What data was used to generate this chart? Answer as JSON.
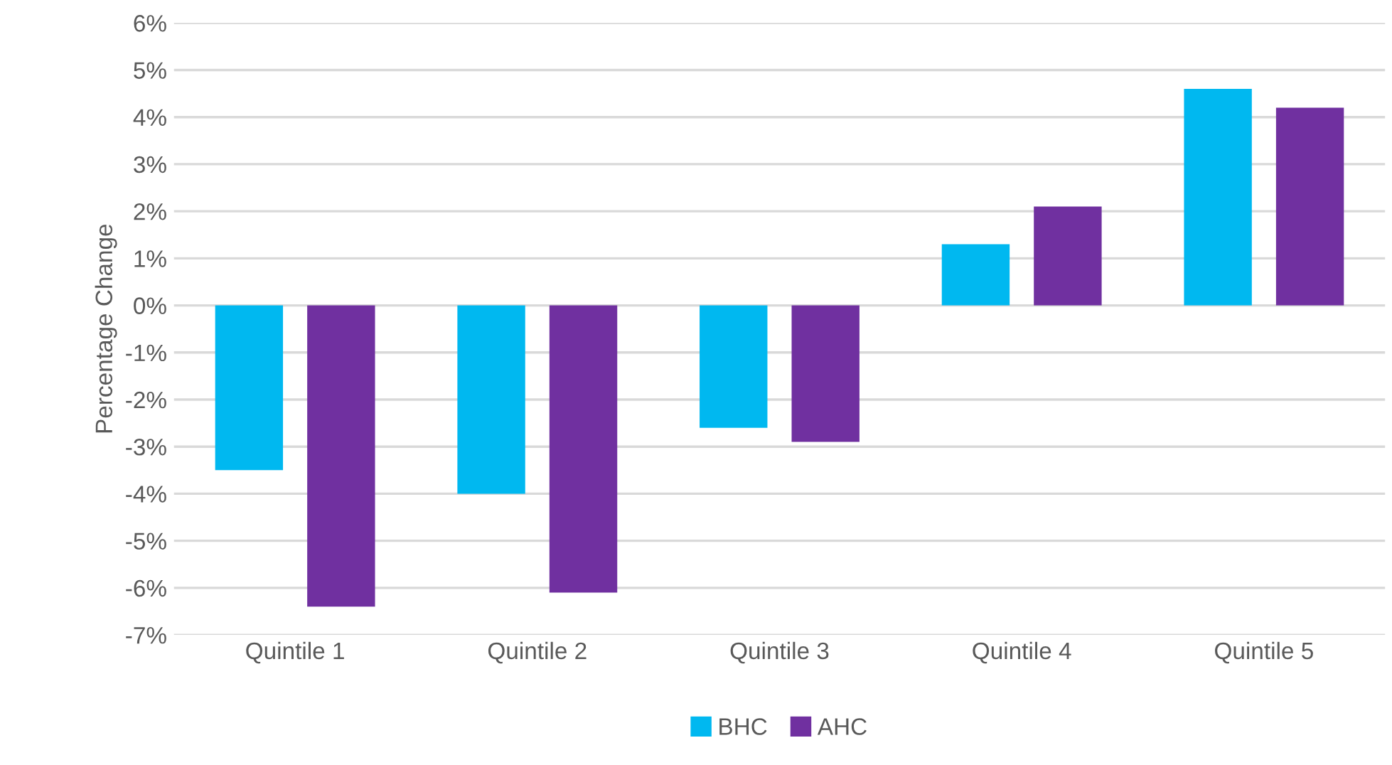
{
  "chart_data": {
    "type": "bar",
    "ylabel": "Percentage Change",
    "categories": [
      "Quintile 1",
      "Quintile 2",
      "Quintile 3",
      "Quintile 4",
      "Quintile 5"
    ],
    "series": [
      {
        "name": "BHC",
        "color": "#00b8f0",
        "values": [
          -3.5,
          -4.0,
          -2.6,
          1.3,
          4.6
        ]
      },
      {
        "name": "AHC",
        "color": "#7030a0",
        "values": [
          -6.4,
          -6.1,
          -2.9,
          2.1,
          4.2
        ]
      }
    ],
    "ylim": [
      -7,
      6
    ],
    "yticks": [
      {
        "value": -7,
        "label": "-7%"
      },
      {
        "value": -6,
        "label": "-6%"
      },
      {
        "value": -5,
        "label": "-5%"
      },
      {
        "value": -4,
        "label": "-4%"
      },
      {
        "value": -3,
        "label": "-3%"
      },
      {
        "value": -2,
        "label": "-2%"
      },
      {
        "value": -1,
        "label": "-1%"
      },
      {
        "value": 0,
        "label": "0%"
      },
      {
        "value": 1,
        "label": "1%"
      },
      {
        "value": 2,
        "label": "2%"
      },
      {
        "value": 3,
        "label": "3%"
      },
      {
        "value": 4,
        "label": "4%"
      },
      {
        "value": 5,
        "label": "5%"
      },
      {
        "value": 6,
        "label": "6%"
      }
    ],
    "grid": "y",
    "legend": "bottom"
  }
}
